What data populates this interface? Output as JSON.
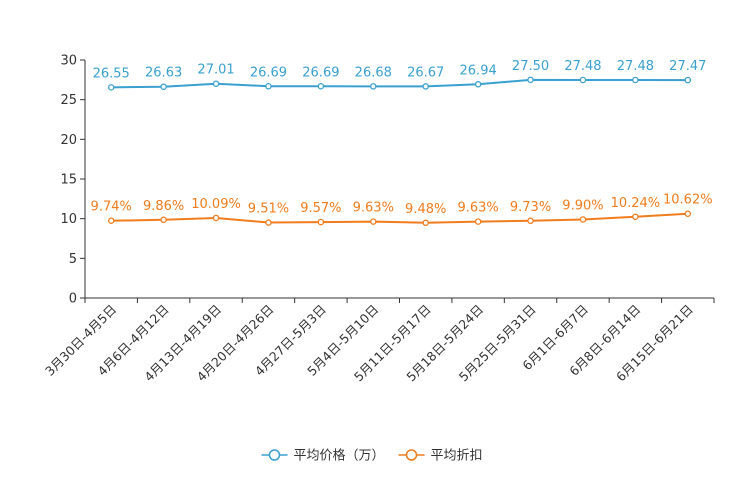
{
  "chart_data": {
    "type": "line",
    "title": "",
    "xlabel": "",
    "ylabel": "",
    "ylim": [
      0,
      30
    ],
    "yticks": [
      0,
      5,
      10,
      15,
      20,
      25,
      30
    ],
    "grid": false,
    "legend_position": "bottom",
    "categories": [
      "3月30日-4月5日",
      "4月6日-4月12日",
      "4月13日-4月19日",
      "4月20日-4月26日",
      "4月27日-5月3日",
      "5月4日-5月10日",
      "5月11日-5月17日",
      "5月18日-5月24日",
      "5月25日-5月31日",
      "6月1日-6月7日",
      "6月8日-6月14日",
      "6月15日-6月21日"
    ],
    "series": [
      {
        "name": "平均价格（万）",
        "color": "#3aa0d0",
        "values": [
          26.55,
          26.63,
          27.01,
          26.69,
          26.69,
          26.68,
          26.67,
          26.94,
          27.5,
          27.48,
          27.48,
          27.47
        ],
        "labels": [
          "26.55",
          "26.63",
          "27.01",
          "26.69",
          "26.69",
          "26.68",
          "26.67",
          "26.94",
          "27.50",
          "27.48",
          "27.48",
          "27.47"
        ]
      },
      {
        "name": "平均折扣",
        "color": "#f07c1e",
        "values": [
          9.74,
          9.86,
          10.09,
          9.51,
          9.57,
          9.63,
          9.48,
          9.63,
          9.73,
          9.9,
          10.24,
          10.62
        ],
        "labels": [
          "9.74%",
          "9.86%",
          "10.09%",
          "9.51%",
          "9.57%",
          "9.63%",
          "9.48%",
          "9.63%",
          "9.73%",
          "9.90%",
          "10.24%",
          "10.62%"
        ]
      }
    ]
  }
}
